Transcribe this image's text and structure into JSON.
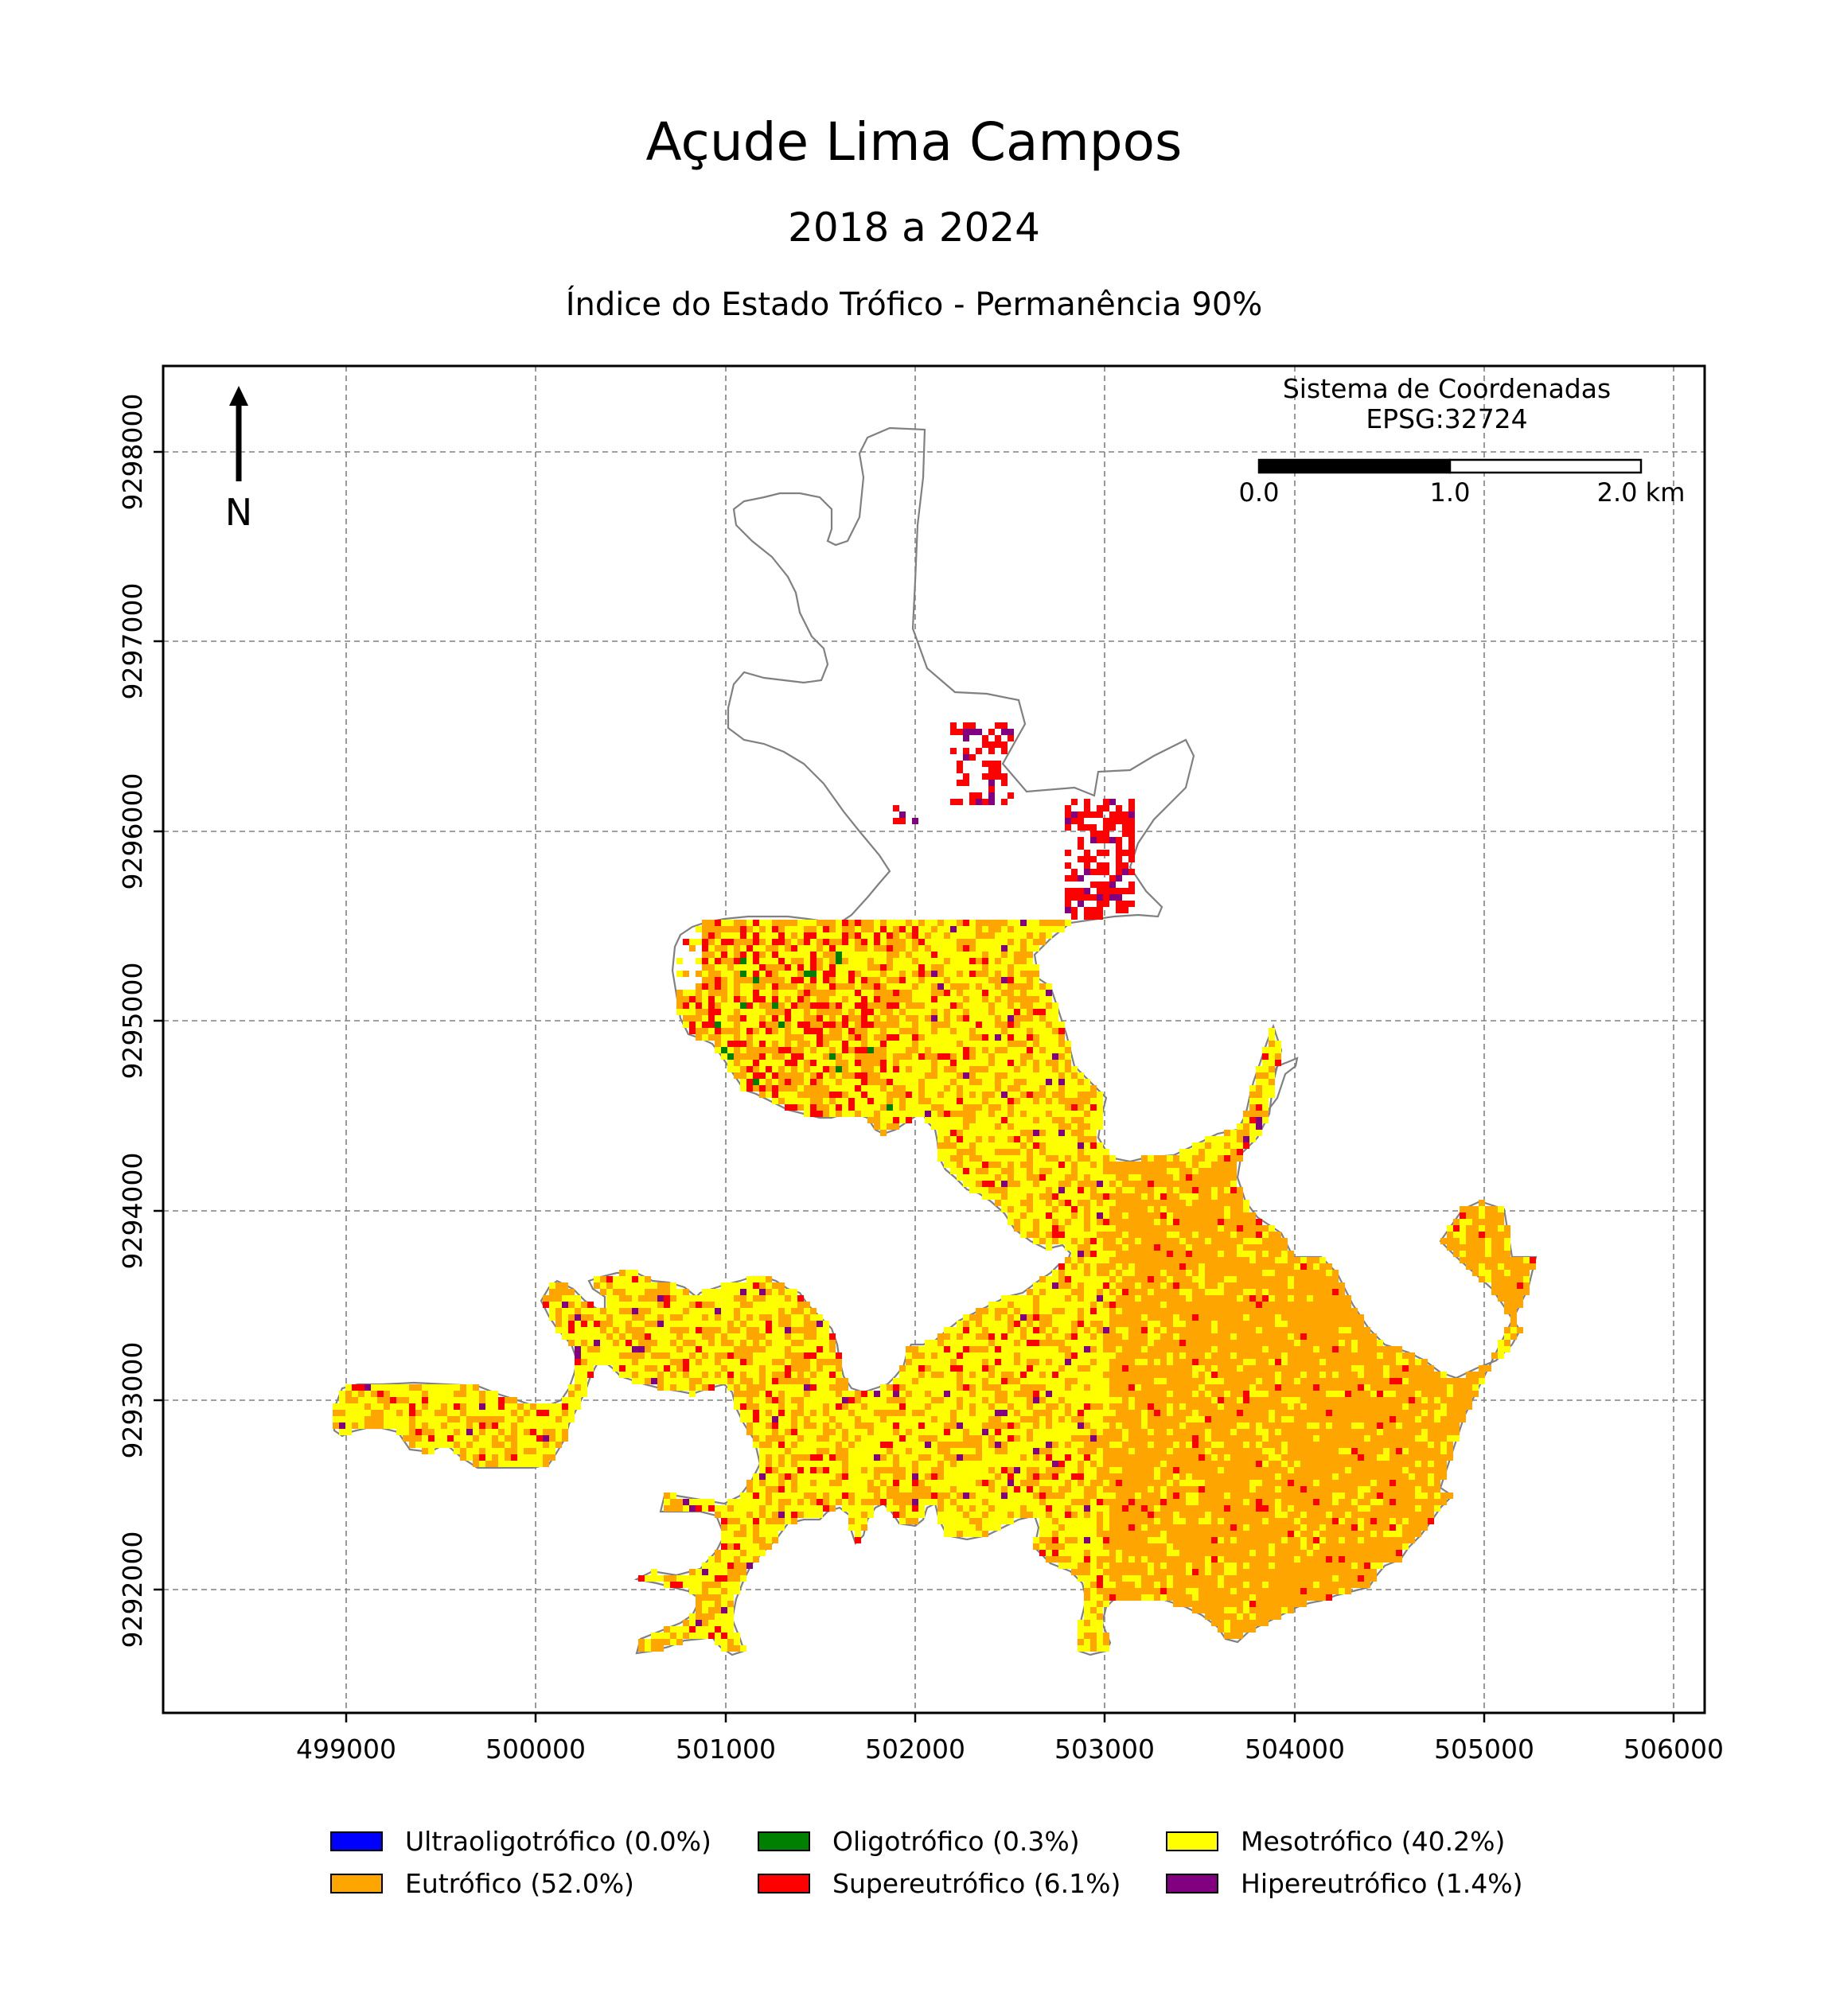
{
  "title": "Açude Lima Campos",
  "subtitle": "2018 a 2024",
  "map_title": "Índice do Estado Trófico - Permanência 90%",
  "north_arrow": {
    "label": "N",
    "icon": "north-arrow-icon"
  },
  "crs": {
    "line1": "Sistema de Coordenadas",
    "line2": "EPSG:32724"
  },
  "scale_bar": {
    "labels": [
      "0.0",
      "1.0",
      "2.0 km"
    ]
  },
  "x_ticks": [
    "499000",
    "500000",
    "501000",
    "502000",
    "503000",
    "504000",
    "505000",
    "506000"
  ],
  "y_ticks": [
    "9292000",
    "9293000",
    "9294000",
    "9295000",
    "9296000",
    "9297000",
    "9298000"
  ],
  "legend": [
    {
      "label": "Ultraoligotrófico (0.0%)",
      "color": "#0000ff"
    },
    {
      "label": "Oligotrófico (0.3%)",
      "color": "#008000"
    },
    {
      "label": "Mesotrófico (40.2%)",
      "color": "#ffff00"
    },
    {
      "label": "Eutrófico (52.0%)",
      "color": "#ffa500"
    },
    {
      "label": "Supereutrófico (6.1%)",
      "color": "#ff0000"
    },
    {
      "label": "Hipereutrófico (1.4%)",
      "color": "#800080"
    }
  ],
  "colors": {
    "ultraoligotrofico": "#0000ff",
    "oligotrofico": "#008000",
    "mesotrofico": "#ffff00",
    "eutrofico": "#ffa500",
    "supereutrofico": "#ff0000",
    "hipereutrofico": "#800080",
    "outline": "#808080",
    "grid": "#808080"
  }
}
